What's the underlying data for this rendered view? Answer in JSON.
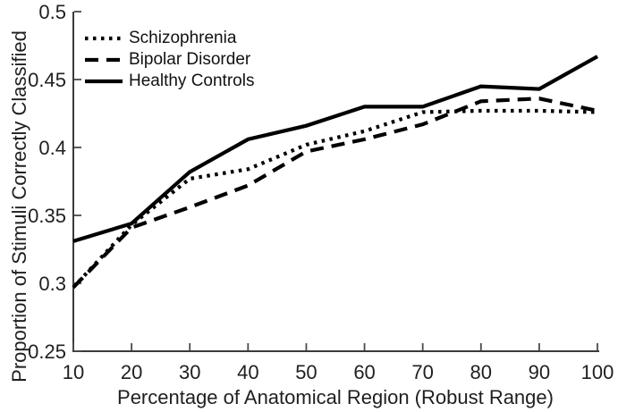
{
  "chart_data": {
    "type": "line",
    "xlabel": "Percentage of Anatomical Region (Robust Range)",
    "ylabel": "Proportion of Stimuli Correctly Classified",
    "x": [
      10,
      20,
      30,
      40,
      50,
      60,
      70,
      80,
      90,
      100
    ],
    "xlim": [
      10,
      100
    ],
    "ylim": [
      0.25,
      0.5
    ],
    "xticks": [
      10,
      20,
      30,
      40,
      50,
      60,
      70,
      80,
      90,
      100
    ],
    "yticks": [
      0.25,
      0.3,
      0.35,
      0.4,
      0.45,
      0.5
    ],
    "ytick_labels": [
      "0.25",
      "0.3",
      "0.35",
      "0.4",
      "0.45",
      "0.5"
    ],
    "grid": false,
    "legend_position": "top-left-inside",
    "line_color": "#000000",
    "series": [
      {
        "name": "Schizophrenia",
        "line_style": "dotted",
        "values": [
          0.297,
          0.343,
          0.377,
          0.384,
          0.402,
          0.412,
          0.426,
          0.427,
          0.427,
          0.426
        ]
      },
      {
        "name": "Bipolar Disorder",
        "line_style": "dashed",
        "values": [
          0.297,
          0.341,
          0.356,
          0.372,
          0.397,
          0.406,
          0.417,
          0.434,
          0.436,
          0.427
        ]
      },
      {
        "name": "Healthy Controls",
        "line_style": "solid",
        "values": [
          0.331,
          0.344,
          0.382,
          0.406,
          0.416,
          0.43,
          0.43,
          0.445,
          0.443,
          0.467
        ]
      }
    ]
  }
}
